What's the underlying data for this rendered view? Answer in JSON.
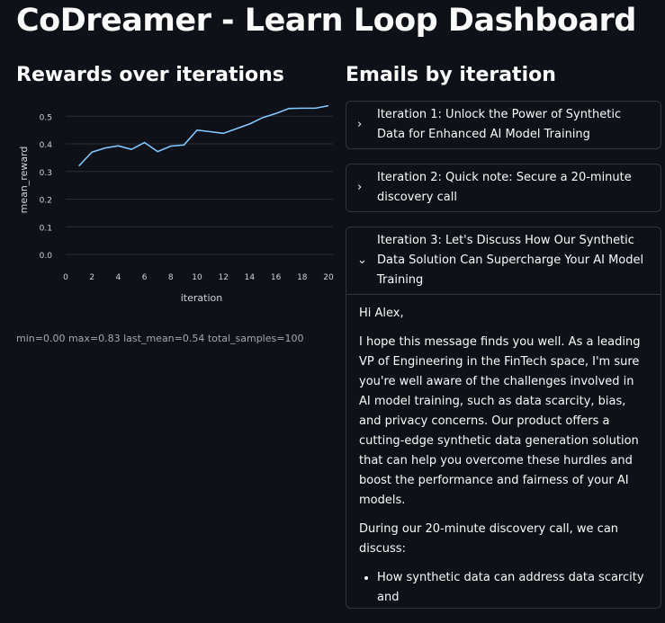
{
  "title": "CoDreamer - Learn Loop Dashboard",
  "left": {
    "heading": "Rewards over iterations",
    "stats": "min=0.00 max=0.83 last_mean=0.54 total_samples=100"
  },
  "chart_data": {
    "type": "line",
    "xlabel": "iteration",
    "ylabel": "mean_reward",
    "x": [
      1,
      2,
      3,
      4,
      5,
      6,
      7,
      8,
      9,
      10,
      11,
      12,
      13,
      14,
      15,
      16,
      17,
      18,
      19,
      20
    ],
    "y": [
      0.32,
      0.37,
      0.385,
      0.393,
      0.38,
      0.405,
      0.372,
      0.392,
      0.396,
      0.45,
      0.444,
      0.438,
      0.455,
      0.472,
      0.495,
      0.51,
      0.528,
      0.529,
      0.529,
      0.538
    ],
    "xlim": [
      0,
      20
    ],
    "ylim": [
      0,
      0.54
    ],
    "xticks": [
      "0",
      "2",
      "4",
      "6",
      "8",
      "10",
      "12",
      "14",
      "16",
      "18",
      "20"
    ],
    "yticks": [
      "0.0",
      "0.1",
      "0.2",
      "0.3",
      "0.4",
      "0.5"
    ],
    "grid": "horizontal",
    "line_color": "#83c9ff",
    "grid_color": "#2a2d36"
  },
  "right": {
    "heading": "Emails by iteration",
    "items": [
      {
        "label": "Iteration 1: Unlock the Power of Synthetic Data for Enhanced AI Model Training",
        "expanded": false,
        "icon": "chevron-right"
      },
      {
        "label": "Iteration 2: Quick note: Secure a 20-minute discovery call",
        "expanded": false,
        "icon": "chevron-right"
      },
      {
        "label": "Iteration 3: Let's Discuss How Our Synthetic Data Solution Can Supercharge Your AI Model Training",
        "expanded": true,
        "icon": "chevron-down",
        "body": {
          "greeting": "Hi Alex,",
          "para1": "I hope this message finds you well. As a leading VP of Engineering in the FinTech space, I'm sure you're well aware of the challenges involved in AI model training, such as data scarcity, bias, and privacy concerns. Our product offers a cutting-edge synthetic data generation solution that can help you overcome these hurdles and boost the performance and fairness of your AI models.",
          "para2": "During our 20-minute discovery call, we can discuss:",
          "bullet1": "How synthetic data can address data scarcity and"
        }
      }
    ]
  }
}
